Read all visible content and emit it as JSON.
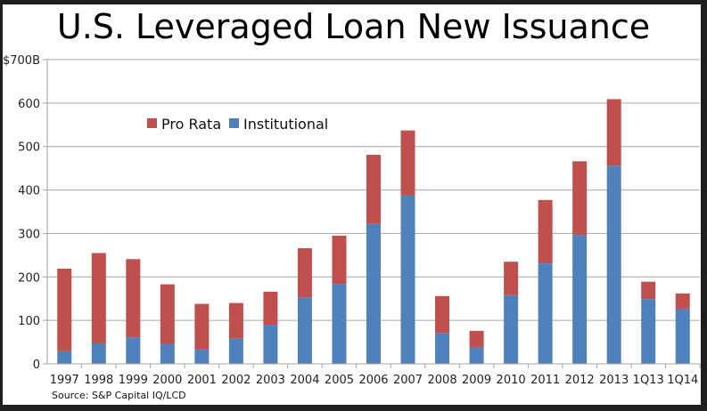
{
  "chart_data": {
    "type": "bar",
    "stacked": true,
    "title": "U.S. Leveraged Loan New Issuance",
    "xlabel": "",
    "ylabel": "",
    "ylim": [
      0,
      700
    ],
    "yticks": [
      0,
      100,
      200,
      300,
      400,
      500,
      600,
      700
    ],
    "ytick_labels": [
      "0",
      "100",
      "200",
      "300",
      "400",
      "500",
      "600",
      "$700B"
    ],
    "grid": true,
    "legend_position": "top-left",
    "categories": [
      "1997",
      "1998",
      "1999",
      "2000",
      "2001",
      "2002",
      "2003",
      "2004",
      "2005",
      "2006",
      "2007",
      "2008",
      "2009",
      "2010",
      "2011",
      "2012",
      "2013",
      "1Q13",
      "1Q14"
    ],
    "series": [
      {
        "name": "Institutional",
        "color": "#4f81bd",
        "values": [
          29,
          47,
          61,
          46,
          33,
          58,
          90,
          153,
          184,
          322,
          387,
          71,
          38,
          158,
          231,
          296,
          456,
          149,
          127
        ]
      },
      {
        "name": "Pro Rata",
        "color": "#c0504d",
        "values": [
          190,
          208,
          180,
          137,
          105,
          82,
          76,
          113,
          111,
          159,
          150,
          85,
          38,
          77,
          146,
          170,
          153,
          40,
          35
        ]
      }
    ],
    "legend": [
      {
        "name": "Pro Rata",
        "color": "#c0504d"
      },
      {
        "name": "Institutional",
        "color": "#4f81bd"
      }
    ],
    "source": "Source: S&P Capital IQ/LCD"
  }
}
